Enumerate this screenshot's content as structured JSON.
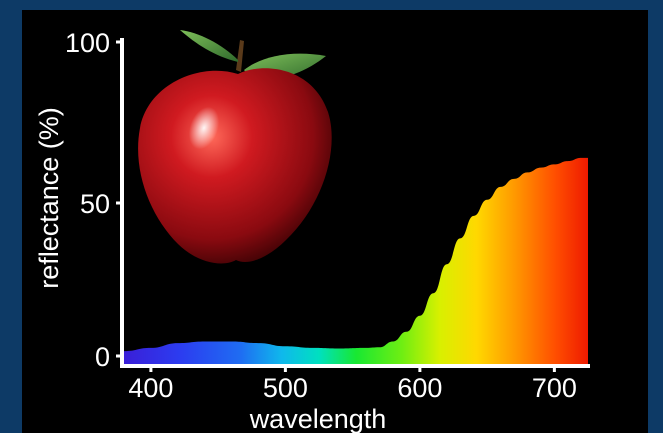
{
  "chart_data": {
    "type": "area",
    "title": "",
    "xlabel": "wavelength",
    "ylabel": "reflectance (%)",
    "xlim": [
      380,
      725
    ],
    "ylim": [
      0,
      100
    ],
    "x_ticks": [
      400,
      500,
      600,
      700
    ],
    "y_ticks": [
      0,
      50,
      100
    ],
    "grid": false,
    "legend": "none",
    "fill": "visible-spectrum gradient (violet to red)",
    "illustration": "red-apple",
    "series": [
      {
        "x": [
          380,
          400,
          420,
          440,
          460,
          480,
          500,
          520,
          540,
          560,
          570,
          580,
          590,
          600,
          610,
          620,
          630,
          640,
          650,
          660,
          670,
          680,
          690,
          700,
          710,
          720,
          725
        ],
        "values": [
          4,
          5,
          6.5,
          7,
          7,
          6.5,
          5.5,
          5,
          4.8,
          5,
          5.2,
          7,
          10,
          15,
          22,
          31,
          39,
          46,
          51,
          55,
          57.5,
          59.5,
          61,
          62,
          63,
          64,
          64
        ]
      }
    ]
  },
  "colors": {
    "background_border": "#0d3a66",
    "panel": "#000000",
    "axis": "#ffffff",
    "apple": "#c0141e",
    "leaf": "#4d8a3c"
  }
}
